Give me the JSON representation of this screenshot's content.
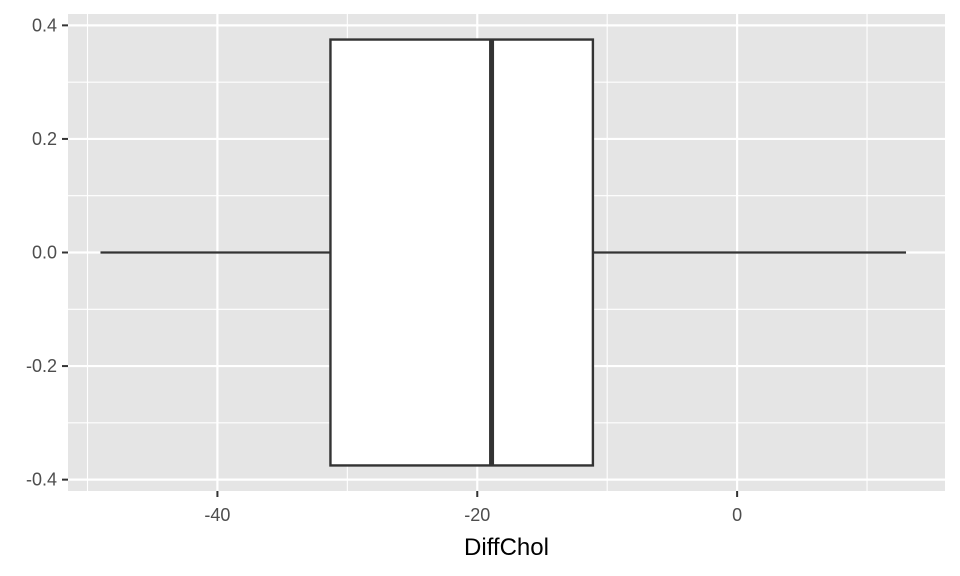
{
  "chart_data": {
    "type": "boxplot",
    "title": "",
    "xlabel": "DiffChol",
    "ylabel": "",
    "xlim": [
      -51.5,
      16
    ],
    "ylim": [
      -0.42,
      0.42
    ],
    "x_ticks": [
      -40,
      -20,
      0
    ],
    "x_tick_labels": [
      "-40",
      "-20",
      "0"
    ],
    "y_ticks": [
      0.4,
      0.2,
      0.0,
      -0.2,
      -0.4
    ],
    "y_tick_labels": [
      "0.4",
      "0.2",
      "0.0",
      "-0.2",
      "-0.4"
    ],
    "grid": true,
    "box": {
      "whisker_low": -49,
      "q1": -31.3,
      "median": -18.9,
      "q3": -11.1,
      "whisker_high": 13
    },
    "box_y_range": [
      -0.375,
      0.375
    ],
    "colors": {
      "panel": "#e5e5e5",
      "grid": "#ffffff",
      "box_fill": "#ffffff",
      "box_stroke": "#333333",
      "tick_text": "#4d4d4d",
      "tick_mark": "#333333"
    }
  }
}
